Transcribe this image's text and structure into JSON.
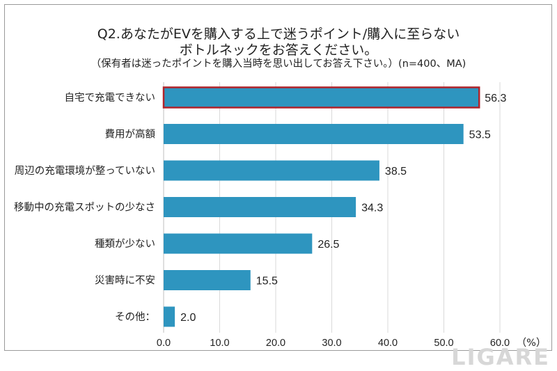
{
  "chart_data": {
    "type": "bar",
    "orientation": "horizontal",
    "title_lines": [
      "Q2.あなたがEVを購入する上で迷うポイント/購入に至らない",
      "ボトルネックをお答えください。"
    ],
    "subtitle": "（保有者は迷ったポイントを購入当時を思い出してお答え下さい。）(n=400、MA)",
    "categories": [
      "自宅で充電できない",
      "費用が高額",
      "周辺の充電環境が整っていない",
      "移動中の充電スポットの少なさ",
      "種類が少ない",
      "災害時に不安",
      "その他："
    ],
    "values": [
      56.3,
      53.5,
      38.5,
      34.3,
      26.5,
      15.5,
      2.0
    ],
    "value_labels": [
      "56.3",
      "53.5",
      "38.5",
      "34.3",
      "26.5",
      "15.5",
      "2.0"
    ],
    "highlight_index": 0,
    "xlim": [
      0,
      60
    ],
    "xticks": [
      "0.0",
      "10.0",
      "20.0",
      "30.0",
      "40.0",
      "50.0",
      "60.0"
    ],
    "xtick_values": [
      0,
      10,
      20,
      30,
      40,
      50,
      60
    ],
    "xlabel_unit": "（%）",
    "grid": true
  },
  "colors": {
    "bar": "#2e95bf",
    "highlight_border": "#b0232a",
    "grid": "#d9d9d9",
    "text": "#222222"
  },
  "watermark": "LIGARE"
}
